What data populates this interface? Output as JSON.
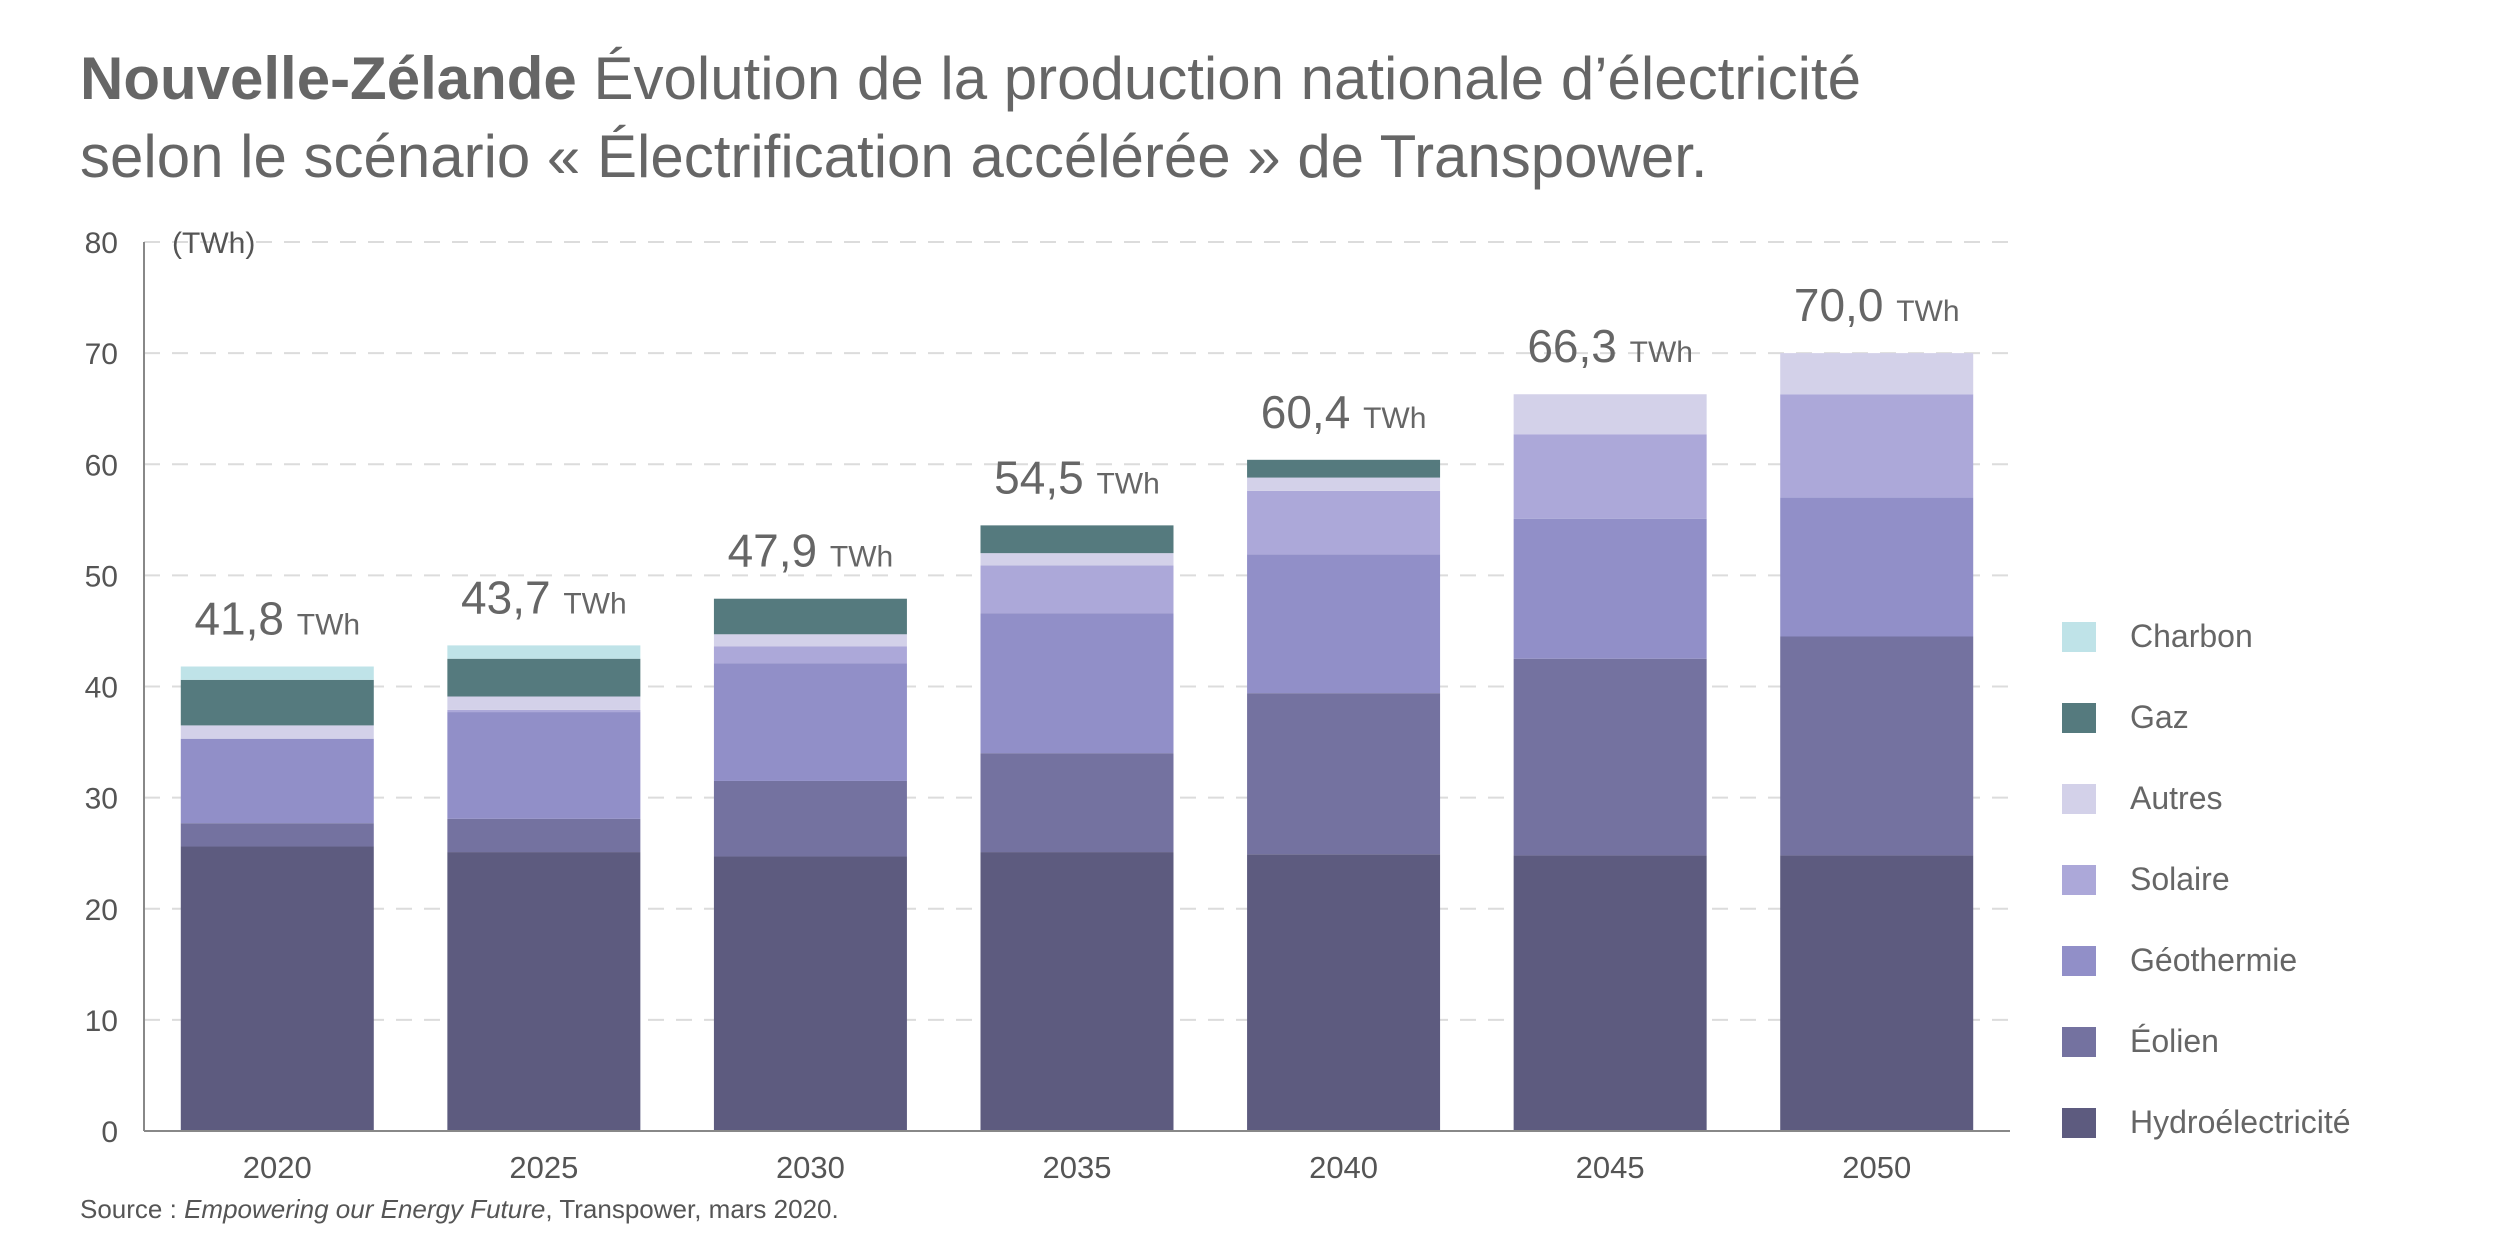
{
  "title": {
    "bold": "Nouvelle-Zélande",
    "line1_rest": "Évolution de la production nationale d’électricité",
    "line2": "selon le scénario « Électrification accélérée » de Transpower."
  },
  "source": {
    "prefix": "Source :",
    "work": "Empowering our Energy Future",
    "suffix": ", Transpower, mars 2020."
  },
  "chart_data": {
    "type": "bar",
    "stacked": true,
    "unit_label": "(TWh)",
    "categories": [
      "2020",
      "2025",
      "2030",
      "2035",
      "2040",
      "2045",
      "2050"
    ],
    "ylim": [
      0,
      80
    ],
    "yticks": [
      0,
      10,
      20,
      30,
      40,
      50,
      60,
      70,
      80
    ],
    "grid": "horizontal-dashed",
    "legend_position": "right",
    "series": [
      {
        "name": "Hydroélectricité",
        "color": "#5d5b7f",
        "values": [
          25.6,
          25.1,
          24.7,
          25.1,
          24.9,
          24.8,
          24.8
        ]
      },
      {
        "name": "Éolien",
        "color": "#7472a0",
        "values": [
          2.1,
          3.0,
          6.8,
          8.9,
          14.5,
          17.7,
          19.7
        ]
      },
      {
        "name": "Géothermie",
        "color": "#918fc8",
        "values": [
          7.6,
          9.6,
          10.6,
          12.6,
          12.5,
          12.6,
          12.5
        ]
      },
      {
        "name": "Solaire",
        "color": "#aca8d9",
        "values": [
          0.0,
          0.2,
          1.5,
          4.3,
          5.7,
          7.6,
          9.3
        ]
      },
      {
        "name": "Autres",
        "color": "#d3d1e9",
        "values": [
          1.2,
          1.2,
          1.1,
          1.1,
          1.2,
          3.6,
          3.7
        ]
      },
      {
        "name": "Gaz",
        "color": "#557a7e",
        "values": [
          4.1,
          3.4,
          3.2,
          2.5,
          1.6,
          0.0,
          0.0
        ]
      },
      {
        "name": "Charbon",
        "color": "#bfe3e8",
        "values": [
          1.2,
          1.2,
          0.0,
          0.0,
          0.0,
          0.0,
          0.0
        ]
      }
    ],
    "totals": [
      {
        "value": "41,8",
        "unit": "TWh"
      },
      {
        "value": "43,7",
        "unit": "TWh"
      },
      {
        "value": "47,9",
        "unit": "TWh"
      },
      {
        "value": "54,5",
        "unit": "TWh"
      },
      {
        "value": "60,4",
        "unit": "TWh"
      },
      {
        "value": "66,3",
        "unit": "TWh"
      },
      {
        "value": "70,0",
        "unit": "TWh"
      }
    ],
    "legend_order": [
      "Charbon",
      "Gaz",
      "Autres",
      "Solaire",
      "Géothermie",
      "Éolien",
      "Hydroélectricité"
    ]
  }
}
